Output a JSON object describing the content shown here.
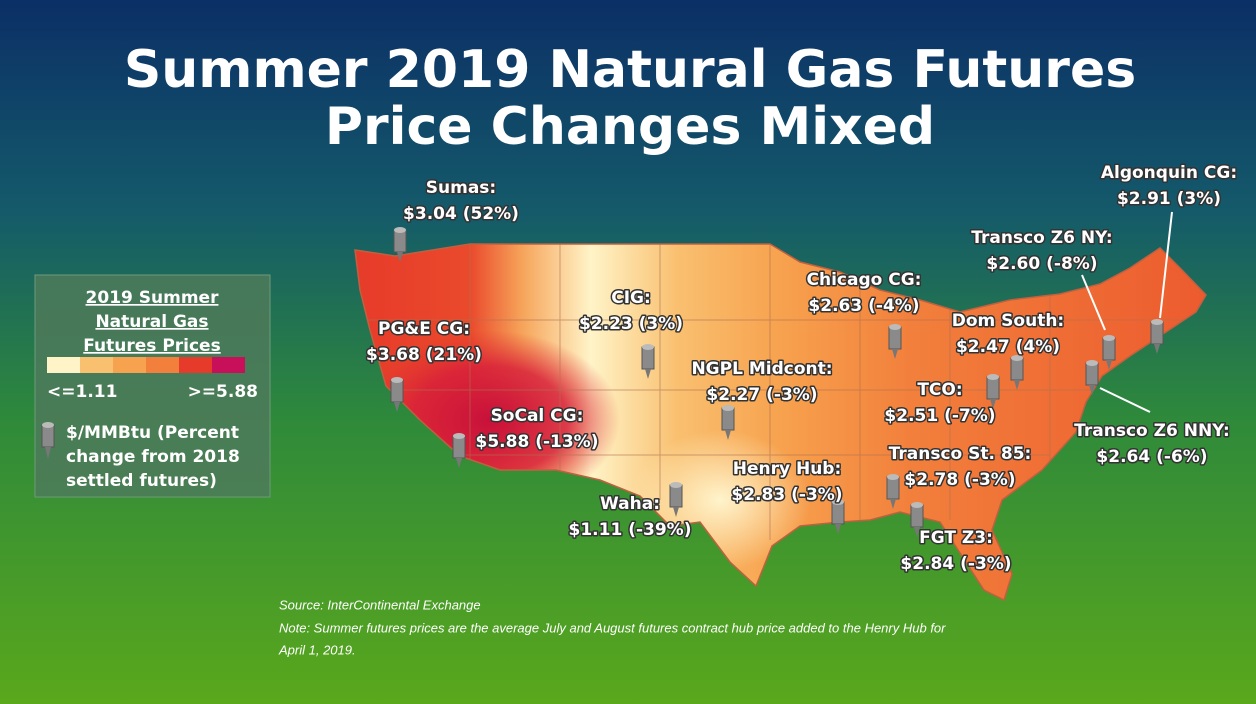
{
  "title": [
    "Summer 2019 Natural Gas Futures",
    "Price Changes Mixed"
  ],
  "hubs": [
    {
      "name": "Sumas:",
      "price": "$3.04 (52%)"
    },
    {
      "name": "PG&E CG:",
      "price": "$3.68 (21%)"
    },
    {
      "name": "CIG:",
      "price": "$2.23 (3%)"
    },
    {
      "name": "SoCal CG:",
      "price": "$5.88 (-13%)"
    },
    {
      "name": "Waha:",
      "price": "$1.11 (-39%)"
    },
    {
      "name": "NGPL Midcont:",
      "price": "$2.27 (-3%)"
    },
    {
      "name": "Chicago CG:",
      "price": "$2.63 (-4%)"
    },
    {
      "name": "Henry Hub:",
      "price": "$2.83 (-3%)"
    },
    {
      "name": "Transco St. 85:",
      "price": "$2.78 (-3%)"
    },
    {
      "name": "FGT Z3:",
      "price": "$2.84 (-3%)"
    },
    {
      "name": "TCO:",
      "price": "$2.51 (-7%)"
    },
    {
      "name": "Dom South:",
      "price": "$2.47 (4%)"
    },
    {
      "name": "Transco Z6 NY:",
      "price": "$2.60 (-8%)"
    },
    {
      "name": "Algonquin CG:",
      "price": "$2.91 (3%)"
    },
    {
      "name": "Transco Z6 NNY:",
      "price": "$2.64 (-6%)"
    }
  ],
  "legend": {
    "title": [
      "2019 Summer",
      "Natural Gas",
      "Futures Prices"
    ],
    "min_label": "<=1.11",
    "max_label": ">=5.88",
    "description": [
      "$/MMBtu (Percent",
      "change from 2018",
      "settled futures)"
    ]
  },
  "source": "Source: InterContinental Exchange",
  "note": [
    "Note: Summer futures prices are the average July and August futures contract hub price added to the Henry Hub for",
    "April 1, 2019."
  ]
}
